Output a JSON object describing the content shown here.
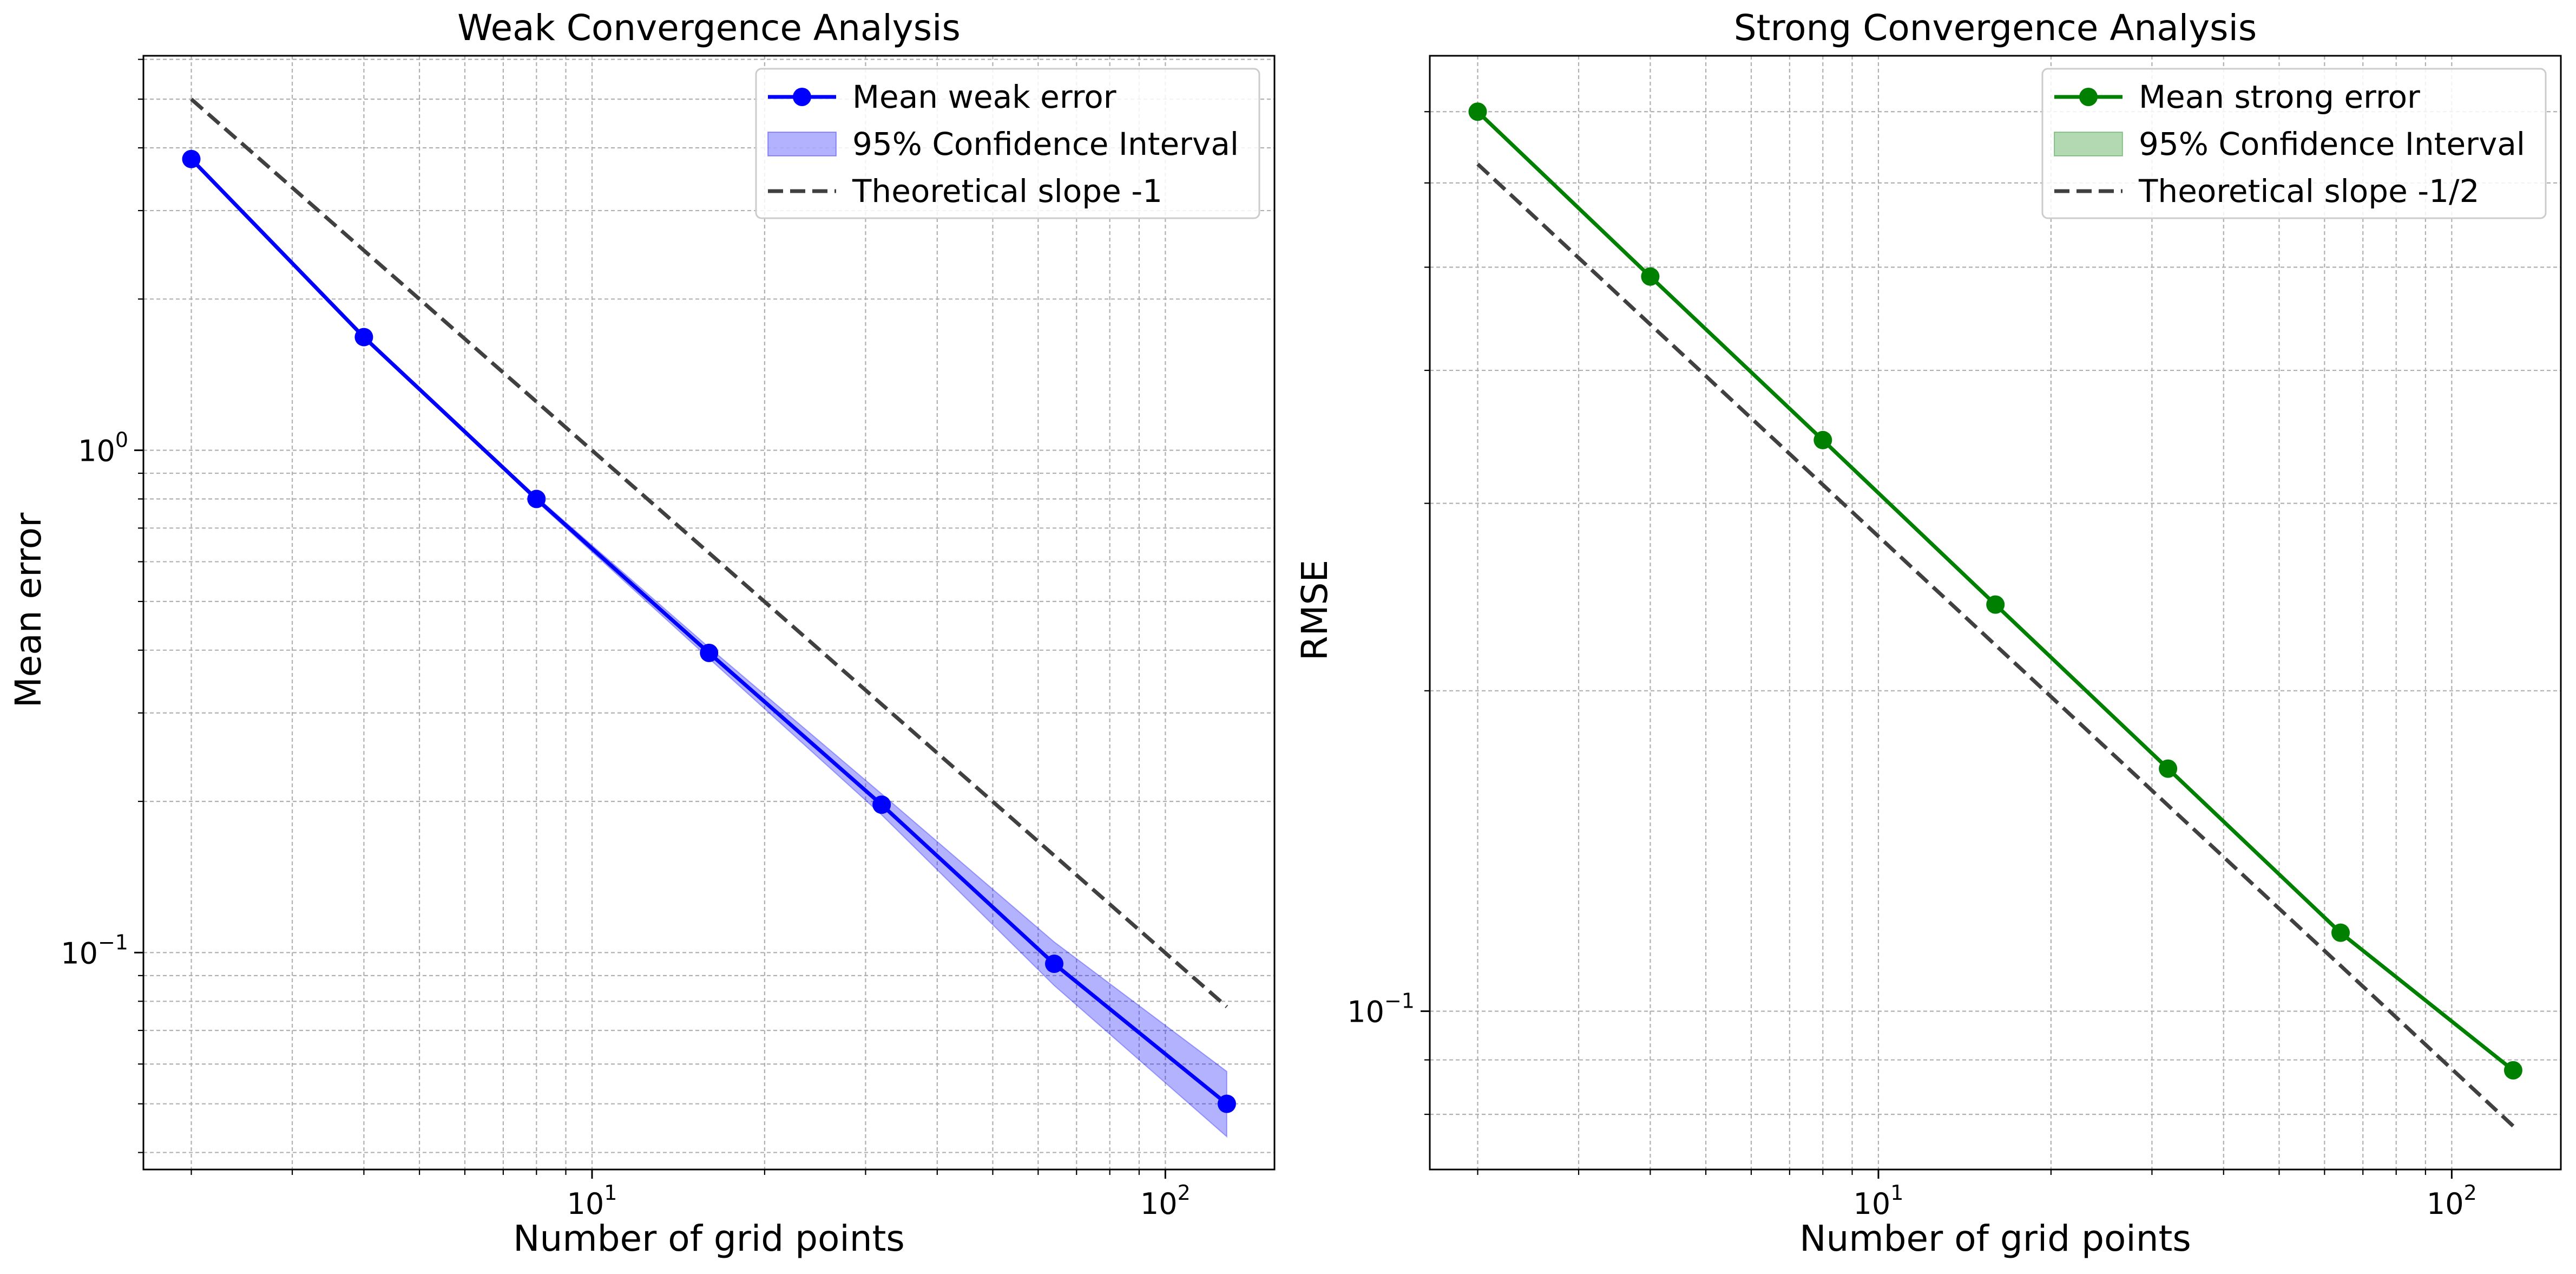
{
  "figure": {
    "background": "#ffffff"
  },
  "chart_data": [
    {
      "type": "line",
      "title": "Weak Convergence Analysis",
      "xlabel": "Number of grid points",
      "ylabel": "Mean error",
      "xscale": "log",
      "yscale": "log",
      "xlim": [
        1.65,
        155
      ],
      "ylim": [
        0.037,
        6.1
      ],
      "grid": true,
      "legend_position": "top-right",
      "x_ticks": [
        {
          "value": 10,
          "base": "10",
          "exp": "1"
        },
        {
          "value": 100,
          "base": "10",
          "exp": "2"
        }
      ],
      "y_ticks": [
        {
          "value": 1,
          "base": "10",
          "exp": "0"
        },
        {
          "value": 0.1,
          "base": "10",
          "exp": "−1"
        }
      ],
      "series": [
        {
          "name": "Mean weak error",
          "kind": "line-marker",
          "color": "#0000ff",
          "x": [
            2,
            4,
            8,
            16,
            32,
            64,
            128
          ],
          "y": [
            3.8,
            1.68,
            0.8,
            0.395,
            0.197,
            0.095,
            0.05
          ]
        },
        {
          "name": "95% Confidence Interval",
          "kind": "band",
          "color": "#0000ff",
          "x": [
            2,
            4,
            8,
            16,
            32,
            64,
            128
          ],
          "lower": [
            3.8,
            1.68,
            0.792,
            0.385,
            0.188,
            0.086,
            0.043
          ],
          "upper": [
            3.8,
            1.69,
            0.808,
            0.405,
            0.207,
            0.105,
            0.058
          ]
        },
        {
          "name": "Theoretical slope -1",
          "kind": "dashed",
          "color": "#404040",
          "x": [
            2,
            128
          ],
          "y": [
            5.0,
            0.078
          ]
        }
      ]
    },
    {
      "type": "line",
      "title": "Strong Convergence Analysis",
      "xlabel": "Number of grid points",
      "ylabel": "RMSE",
      "xscale": "log",
      "yscale": "log",
      "xlim": [
        1.65,
        155
      ],
      "ylim": [
        0.071,
        0.79
      ],
      "grid": true,
      "legend_position": "top-right",
      "x_ticks": [
        {
          "value": 10,
          "base": "10",
          "exp": "1"
        },
        {
          "value": 100,
          "base": "10",
          "exp": "2"
        }
      ],
      "y_ticks": [
        {
          "value": 0.1,
          "base": "10",
          "exp": "−1"
        }
      ],
      "series": [
        {
          "name": "Mean strong error",
          "kind": "line-marker",
          "color": "#008000",
          "x": [
            2,
            4,
            8,
            16,
            32,
            64,
            128
          ],
          "y": [
            0.7,
            0.49,
            0.344,
            0.241,
            0.169,
            0.1185,
            0.088
          ]
        },
        {
          "name": "95% Confidence Interval",
          "kind": "band",
          "color": "#008000",
          "x": [
            2,
            4,
            8,
            16,
            32,
            64,
            128
          ],
          "lower": [
            0.7,
            0.49,
            0.344,
            0.241,
            0.169,
            0.1185,
            0.088
          ],
          "upper": [
            0.7,
            0.49,
            0.344,
            0.241,
            0.169,
            0.1185,
            0.088
          ]
        },
        {
          "name": "Theoretical slope -1/2",
          "kind": "dashed",
          "color": "#404040",
          "x": [
            2,
            128
          ],
          "y": [
            0.625,
            0.078
          ]
        }
      ]
    }
  ]
}
